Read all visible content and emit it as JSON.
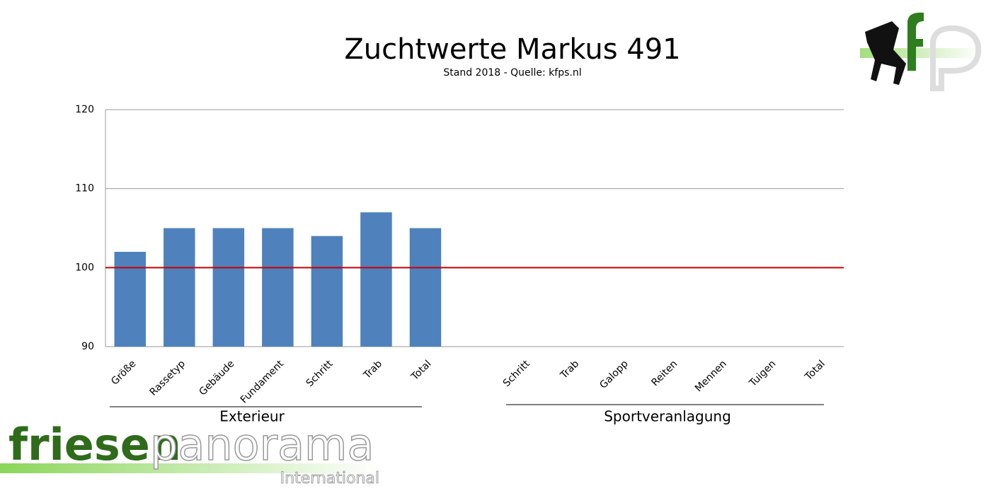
{
  "chart_data": {
    "type": "bar",
    "title": "Zuchtwerte Markus 491",
    "subtitle": "Stand 2018 - Quelle: kfps.nl",
    "categories": [
      "Größe",
      "Rassetyp",
      "Gebäude",
      "Fundament",
      "Schritt",
      "Trab",
      "Total",
      null,
      "Schritt",
      "Trab",
      "Galopp",
      "Reiten",
      "Mennen",
      "Tuigen",
      "Total"
    ],
    "values": [
      102,
      105,
      105,
      105,
      104,
      107,
      105,
      null,
      null,
      null,
      null,
      null,
      null,
      null,
      null
    ],
    "color": "#4f81bd",
    "ylim": [
      90,
      120
    ],
    "yticks": [
      90,
      100,
      110,
      120
    ],
    "grid": true,
    "reference_line": {
      "value": 100,
      "color": "#cc0000"
    },
    "groups": [
      "Exterieur",
      "Sportveranlagung"
    ]
  },
  "branding": {
    "name_part1": "friesen",
    "name_part2": "panorama",
    "subtitle": "International"
  }
}
